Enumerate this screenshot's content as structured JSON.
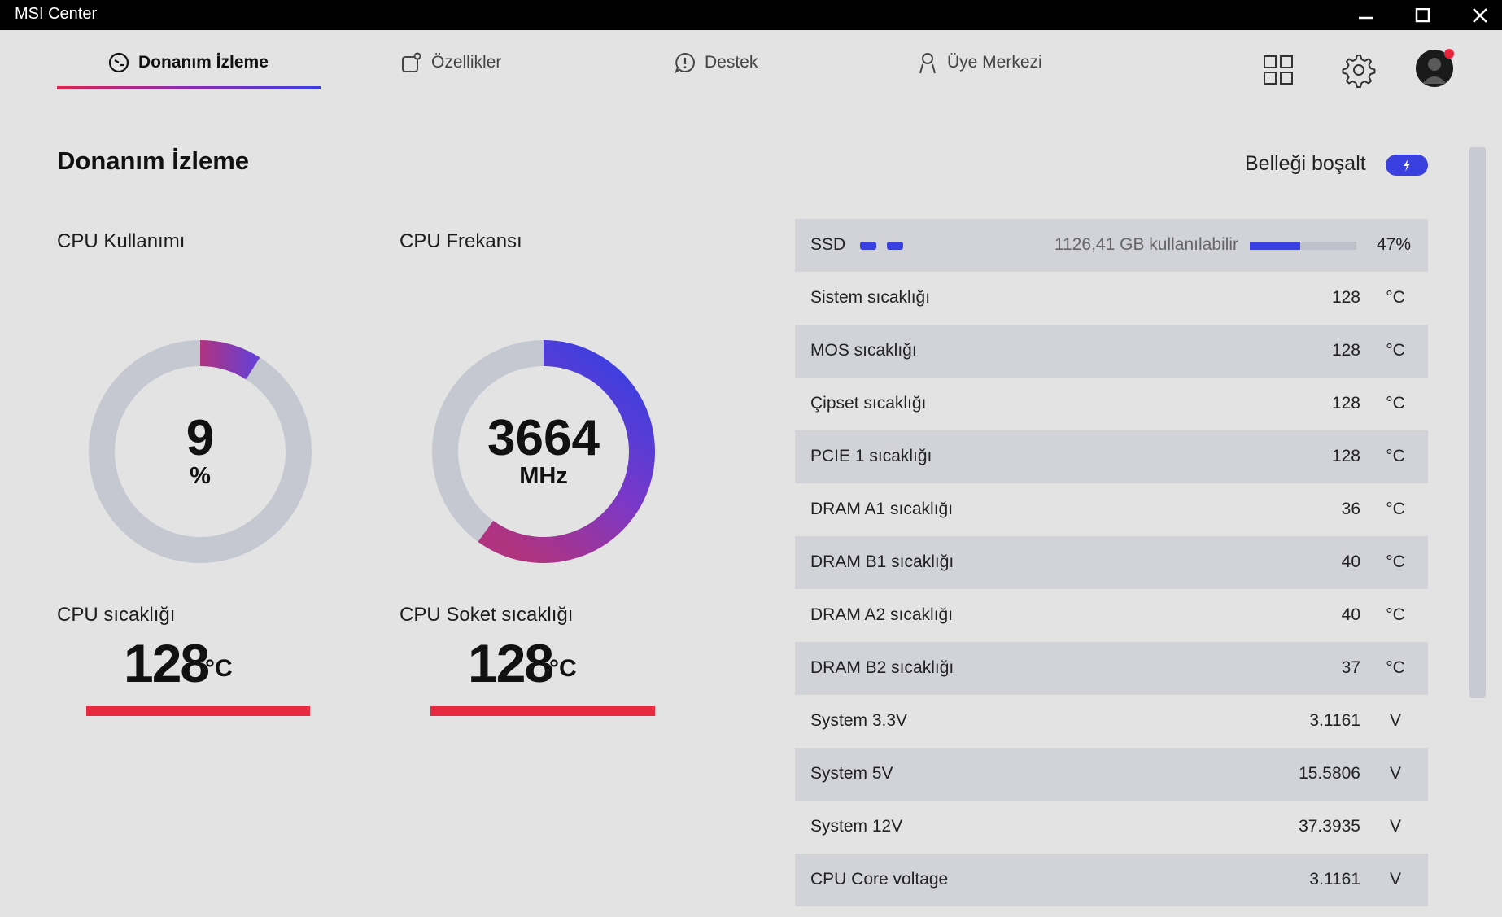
{
  "window": {
    "title": "MSI Center"
  },
  "tabs": [
    {
      "label": "Donanım İzleme",
      "active": true,
      "icon": "gauge-icon"
    },
    {
      "label": "Özellikler",
      "active": false,
      "icon": "features-icon"
    },
    {
      "label": "Destek",
      "active": false,
      "icon": "support-icon"
    },
    {
      "label": "Üye Merkezi",
      "active": false,
      "icon": "user-icon"
    }
  ],
  "header_icons": [
    "grid-icon",
    "gear-icon",
    "avatar-icon"
  ],
  "page": {
    "title": "Donanım İzleme",
    "free_memory_label": "Belleği boşalt"
  },
  "gauges": {
    "cpu_usage": {
      "label": "CPU Kullanımı",
      "value": "9",
      "unit": "%",
      "fraction": 0.09
    },
    "cpu_freq": {
      "label": "CPU Frekansı",
      "value": "3664",
      "unit": "MHz",
      "fraction": 0.6
    }
  },
  "temps": {
    "cpu": {
      "label": "CPU sıcaklığı",
      "value": "128",
      "unit": "°C"
    },
    "socket": {
      "label": "CPU Soket sıcaklığı",
      "value": "128",
      "unit": "°C"
    }
  },
  "ssd": {
    "name": "SSD",
    "available": "1126,41 GB kullanılabilir",
    "percent": "47%",
    "fraction": 0.47
  },
  "sensors": [
    {
      "name": "Sistem sıcaklığı",
      "value": "128",
      "unit": "°C"
    },
    {
      "name": "MOS sıcaklığı",
      "value": "128",
      "unit": "°C"
    },
    {
      "name": "Çipset sıcaklığı",
      "value": "128",
      "unit": "°C"
    },
    {
      "name": "PCIE 1 sıcaklığı",
      "value": "128",
      "unit": "°C"
    },
    {
      "name": "DRAM A1 sıcaklığı",
      "value": "36",
      "unit": "°C"
    },
    {
      "name": "DRAM B1 sıcaklığı",
      "value": "40",
      "unit": "°C"
    },
    {
      "name": "DRAM A2 sıcaklığı",
      "value": "40",
      "unit": "°C"
    },
    {
      "name": "DRAM B2 sıcaklığı",
      "value": "37",
      "unit": "°C"
    },
    {
      "name": "System 3.3V",
      "value": "3.1161",
      "unit": "V"
    },
    {
      "name": "System 5V",
      "value": "15.5806",
      "unit": "V"
    },
    {
      "name": "System 12V",
      "value": "37.3935",
      "unit": "V"
    },
    {
      "name": "CPU Core voltage",
      "value": "3.1161",
      "unit": "V"
    }
  ],
  "colors": {
    "accent_blue": "#3a3fe0",
    "accent_purple": "#8a2bb5",
    "accent_magenta": "#b0337f",
    "temp_red": "#e8293f"
  }
}
